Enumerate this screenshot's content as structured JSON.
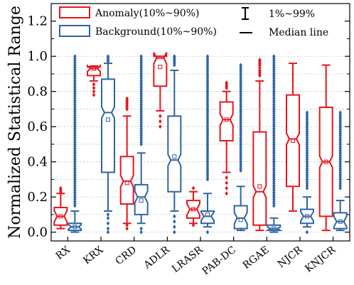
{
  "chart_data": {
    "type": "boxplot",
    "title": "",
    "xlabel": "",
    "ylabel": "Normalized Statistical Range",
    "ylim": [
      -0.05,
      1.3
    ],
    "yticks": [
      "0.0",
      "0.2",
      "0.4",
      "0.6",
      "0.8",
      "1.0",
      "1.2"
    ],
    "ytick_values": [
      0.0,
      0.2,
      0.4,
      0.6,
      0.8,
      1.0,
      1.2
    ],
    "grid": "horizontal dotted",
    "legend_position": "top",
    "legend": {
      "anomaly_label": "Anomaly(10%~90%)",
      "background_label": "Background(10%~90%)",
      "whisker_label": "1%~99%",
      "median_label": "Median line"
    },
    "colors": {
      "anomaly": "#e8141c",
      "background": "#2f64a0",
      "grid": "#b0b0b0"
    },
    "categories": [
      "RX",
      "KRX",
      "CRD",
      "ADLR",
      "LRASR",
      "PAB-DC",
      "RGAE",
      "NJCR",
      "KNJCR"
    ],
    "series": [
      {
        "name": "Anomaly",
        "boxes": [
          {
            "p1": 0.02,
            "p10": 0.04,
            "median": 0.09,
            "mean": 0.09,
            "p90": 0.14,
            "p99": 0.22,
            "outliers_low": [],
            "outliers_high": [
              0.23,
              0.24,
              0.25
            ]
          },
          {
            "p1": 0.86,
            "p10": 0.89,
            "median": 0.93,
            "mean": 0.93,
            "p90": 0.94,
            "p99": 0.945,
            "outliers_low": [
              0.78,
              0.8,
              0.82,
              0.84
            ],
            "outliers_high": []
          },
          {
            "p1": 0.05,
            "p10": 0.16,
            "median": 0.29,
            "mean": 0.28,
            "p90": 0.43,
            "p99": 0.66,
            "outliers_low": [
              0.02,
              0.04
            ],
            "outliers_high": [
              0.7,
              0.73,
              0.76
            ]
          },
          {
            "p1": 0.69,
            "p10": 0.83,
            "median": 0.99,
            "mean": 0.94,
            "p90": 1.0,
            "p99": 1.0,
            "outliers_low": [
              0.6,
              0.63,
              0.66
            ],
            "outliers_high": []
          },
          {
            "p1": 0.05,
            "p10": 0.08,
            "median": 0.13,
            "mean": 0.13,
            "p90": 0.18,
            "p99": 0.23,
            "outliers_low": [
              0.04
            ],
            "outliers_high": [
              0.25
            ]
          },
          {
            "p1": 0.34,
            "p10": 0.52,
            "median": 0.64,
            "mean": 0.64,
            "p90": 0.74,
            "p99": 0.8,
            "outliers_low": [
              0.22,
              0.25,
              0.28,
              0.31
            ],
            "outliers_high": [
              0.82,
              0.85
            ]
          },
          {
            "p1": 0.01,
            "p10": 0.04,
            "median": 0.23,
            "mean": 0.26,
            "p90": 0.57,
            "p99": 0.86,
            "outliers_low": [],
            "outliers_high": [
              0.89,
              0.92,
              0.95,
              0.98
            ]
          },
          {
            "p1": 0.12,
            "p10": 0.26,
            "median": 0.53,
            "mean": 0.52,
            "p90": 0.78,
            "p99": 0.96,
            "outliers_low": [],
            "outliers_high": []
          },
          {
            "p1": 0.01,
            "p10": 0.09,
            "median": 0.4,
            "mean": 0.4,
            "p90": 0.71,
            "p99": 0.95,
            "outliers_low": [],
            "outliers_high": []
          }
        ]
      },
      {
        "name": "Background",
        "boxes": [
          {
            "p1": 0.0,
            "p10": 0.01,
            "median": 0.03,
            "mean": 0.03,
            "p90": 0.05,
            "p99": 0.12,
            "outliers_low": [],
            "outliers_high": [
              0.15,
              0.2,
              0.3,
              0.4,
              0.5,
              0.6,
              0.7,
              0.8,
              0.9,
              0.95,
              1.0
            ]
          },
          {
            "p1": 0.12,
            "p10": 0.34,
            "median": 0.68,
            "mean": 0.64,
            "p90": 0.87,
            "p99": 0.96,
            "outliers_low": [
              0.0,
              0.02,
              0.05,
              0.08,
              0.1
            ],
            "outliers_high": [
              0.97,
              0.98,
              0.99,
              1.0
            ]
          },
          {
            "p1": 0.05,
            "p10": 0.1,
            "median": 0.2,
            "mean": 0.18,
            "p90": 0.27,
            "p99": 0.45,
            "outliers_low": [
              0.0,
              0.02
            ],
            "outliers_high": [
              0.5,
              0.6,
              0.7,
              0.8,
              0.9,
              1.0
            ]
          },
          {
            "p1": 0.12,
            "p10": 0.23,
            "median": 0.41,
            "mean": 0.43,
            "p90": 0.66,
            "p99": 0.92,
            "outliers_low": [
              0.0,
              0.03,
              0.06,
              0.09
            ],
            "outliers_high": [
              0.95,
              0.98,
              1.0
            ]
          },
          {
            "p1": 0.03,
            "p10": 0.05,
            "median": 0.09,
            "mean": 0.1,
            "p90": 0.12,
            "p99": 0.22,
            "outliers_low": [
              0.0
            ],
            "outliers_high": [
              0.3,
              0.4,
              0.5,
              0.6,
              0.7,
              0.8,
              0.9,
              1.0
            ]
          },
          {
            "p1": 0.01,
            "p10": 0.02,
            "median": 0.08,
            "mean": 0.07,
            "p90": 0.15,
            "p99": 0.26,
            "outliers_low": [],
            "outliers_high": [
              0.35,
              0.45,
              0.55,
              0.65,
              0.75,
              0.85,
              0.95
            ]
          },
          {
            "p1": 0.0,
            "p10": 0.01,
            "median": 0.02,
            "mean": 0.02,
            "p90": 0.04,
            "p99": 0.08,
            "outliers_low": [],
            "outliers_high": [
              0.15,
              0.25,
              0.35,
              0.45,
              0.55,
              0.65,
              0.75,
              0.85,
              0.95,
              1.0
            ]
          },
          {
            "p1": 0.03,
            "p10": 0.05,
            "median": 0.09,
            "mean": 0.09,
            "p90": 0.13,
            "p99": 0.2,
            "outliers_low": [
              0.0
            ],
            "outliers_high": [
              0.25,
              0.35,
              0.45,
              0.55,
              0.63,
              0.68
            ]
          },
          {
            "p1": 0.01,
            "p10": 0.02,
            "median": 0.06,
            "mean": 0.06,
            "p90": 0.11,
            "p99": 0.18,
            "outliers_low": [],
            "outliers_high": [
              0.25,
              0.35,
              0.45,
              0.55,
              0.62,
              0.68
            ]
          }
        ]
      }
    ]
  }
}
